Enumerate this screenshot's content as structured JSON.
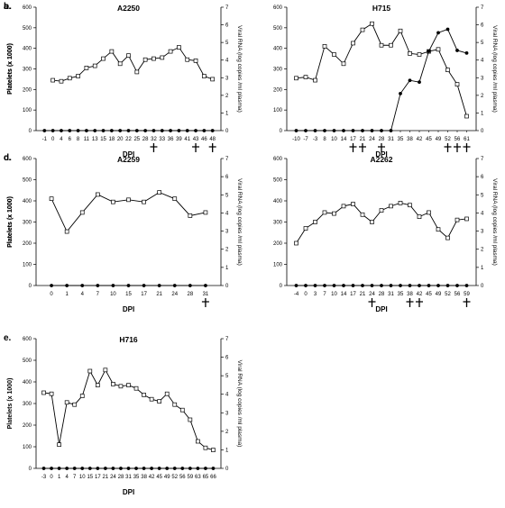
{
  "chart_data": [
    {
      "panel": "a.",
      "title": "A2250",
      "type": "line",
      "ylabel": "Platelets (x 1000)",
      "y2label": "Viral RNA (log copies /ml plasma)",
      "xlabel": "DPI",
      "ylim": [
        0,
        600
      ],
      "yticks": [
        0,
        100,
        200,
        300,
        400,
        500,
        600
      ],
      "y2lim": [
        0,
        7
      ],
      "y2ticks": [
        0,
        1,
        2,
        3,
        4,
        5,
        6,
        7
      ],
      "categories": [
        "-1",
        "0",
        "4",
        "6",
        "8",
        "11",
        "13",
        "15",
        "18",
        "20",
        "22",
        "25",
        "28",
        "32",
        "33",
        "36",
        "39",
        "41",
        "43",
        "46",
        "48"
      ],
      "series": [
        {
          "axis": "left",
          "marker": "square",
          "values": [
            null,
            245,
            240,
            255,
            265,
            305,
            315,
            350,
            385,
            325,
            365,
            285,
            345,
            350,
            355,
            385,
            405,
            345,
            340,
            265,
            250
          ]
        },
        {
          "axis": "right",
          "marker": "circle",
          "values": [
            0,
            0,
            0,
            0,
            0,
            0,
            0,
            0,
            0,
            0,
            0,
            0,
            0,
            0,
            0,
            0,
            0,
            0,
            0,
            0,
            0
          ]
        }
      ],
      "crosses": [
        "32",
        "43",
        "48"
      ]
    },
    {
      "panel": "b.",
      "title": "H715",
      "type": "line",
      "ylabel": "Platelets (x 1000)",
      "y2label": "Viral RNA (log copies /ml plasma)",
      "xlabel": "DPI",
      "ylim": [
        0,
        600
      ],
      "yticks": [
        0,
        100,
        200,
        300,
        400,
        500,
        600
      ],
      "y2lim": [
        0,
        7
      ],
      "y2ticks": [
        0,
        1,
        2,
        3,
        4,
        5,
        6,
        7
      ],
      "categories": [
        "-10",
        "-7",
        "-3",
        "8",
        "10",
        "14",
        "17",
        "21",
        "24",
        "28",
        "31",
        "35",
        "38",
        "42",
        "45",
        "49",
        "52",
        "56",
        "61"
      ],
      "series": [
        {
          "axis": "left",
          "marker": "square",
          "values": [
            255,
            260,
            245,
            410,
            370,
            325,
            425,
            490,
            520,
            415,
            415,
            485,
            375,
            370,
            385,
            395,
            295,
            225,
            70
          ]
        },
        {
          "axis": "right",
          "marker": "circle",
          "values": [
            0,
            0,
            0,
            0,
            0,
            0,
            0,
            0,
            0,
            0,
            0,
            2.1,
            2.85,
            2.75,
            4.5,
            5.55,
            5.75,
            4.55,
            4.4
          ]
        }
      ],
      "crosses": [
        "17",
        "21",
        "28",
        "52",
        "56",
        "61"
      ]
    },
    {
      "panel": "c.",
      "title": "A2259",
      "type": "line",
      "ylabel": "Platelets (x 1000)",
      "y2label": "Viral RNA (log copies /ml plasma)",
      "xlabel": "DPI",
      "ylim": [
        0,
        600
      ],
      "yticks": [
        0,
        100,
        200,
        300,
        400,
        500,
        600
      ],
      "y2lim": [
        0,
        7
      ],
      "y2ticks": [
        0,
        1,
        2,
        3,
        4,
        5,
        6,
        7
      ],
      "categories": [
        "0",
        "1",
        "4",
        "7",
        "10",
        "15",
        "17",
        "21",
        "24",
        "28",
        "31"
      ],
      "series": [
        {
          "axis": "left",
          "marker": "square",
          "values": [
            410,
            255,
            345,
            430,
            395,
            405,
            395,
            440,
            410,
            330,
            345
          ]
        },
        {
          "axis": "right",
          "marker": "circle",
          "values": [
            0,
            0,
            0,
            0,
            0,
            0,
            0,
            0,
            0,
            0,
            0
          ]
        }
      ],
      "crosses": [
        "31"
      ]
    },
    {
      "panel": "d.",
      "title": "A2262",
      "type": "line",
      "ylabel": "Platelets (x 1000)",
      "y2label": "Viral RNA (log copies /ml plasma)",
      "xlabel": "DPI",
      "ylim": [
        0,
        600
      ],
      "yticks": [
        0,
        100,
        200,
        300,
        400,
        500,
        600
      ],
      "y2lim": [
        0,
        7
      ],
      "y2ticks": [
        0,
        1,
        2,
        3,
        4,
        5,
        6,
        7
      ],
      "categories": [
        "-4",
        "0",
        "3",
        "7",
        "10",
        "14",
        "17",
        "21",
        "24",
        "28",
        "31",
        "35",
        "38",
        "42",
        "45",
        "49",
        "52",
        "56",
        "59"
      ],
      "series": [
        {
          "axis": "left",
          "marker": "square",
          "values": [
            200,
            270,
            300,
            345,
            340,
            375,
            385,
            335,
            300,
            355,
            375,
            390,
            380,
            325,
            345,
            265,
            225,
            310,
            315
          ]
        },
        {
          "axis": "right",
          "marker": "circle",
          "values": [
            0,
            0,
            0,
            0,
            0,
            0,
            0,
            0,
            0,
            0,
            0,
            0,
            0,
            0,
            0,
            0,
            0,
            0,
            0
          ]
        }
      ],
      "crosses": [
        "24",
        "38",
        "42",
        "59"
      ]
    },
    {
      "panel": "e.",
      "title": "H716",
      "type": "line",
      "ylabel": "Platelets (x 1000)",
      "y2label": "Viral RNA (log copies /ml plasma)",
      "xlabel": "DPI",
      "ylim": [
        0,
        600
      ],
      "yticks": [
        0,
        100,
        200,
        300,
        400,
        500,
        600
      ],
      "y2lim": [
        0,
        7
      ],
      "y2ticks": [
        0,
        1,
        2,
        3,
        4,
        5,
        6,
        7
      ],
      "categories": [
        "-3",
        "0",
        "1",
        "4",
        "7",
        "10",
        "15",
        "17",
        "21",
        "24",
        "28",
        "31",
        "35",
        "38",
        "42",
        "45",
        "49",
        "52",
        "56",
        "59",
        "63",
        "65",
        "66"
      ],
      "series": [
        {
          "axis": "left",
          "marker": "square",
          "values": [
            350,
            345,
            110,
            305,
            295,
            335,
            450,
            385,
            455,
            390,
            380,
            385,
            370,
            340,
            320,
            310,
            345,
            295,
            270,
            225,
            125,
            95,
            85
          ]
        },
        {
          "axis": "right",
          "marker": "circle",
          "values": [
            0,
            0,
            0,
            0,
            0,
            0,
            0,
            0,
            0,
            0,
            0,
            0,
            0,
            0,
            0,
            0,
            0,
            0,
            0,
            0,
            0,
            0,
            0
          ]
        }
      ],
      "crosses": []
    }
  ]
}
